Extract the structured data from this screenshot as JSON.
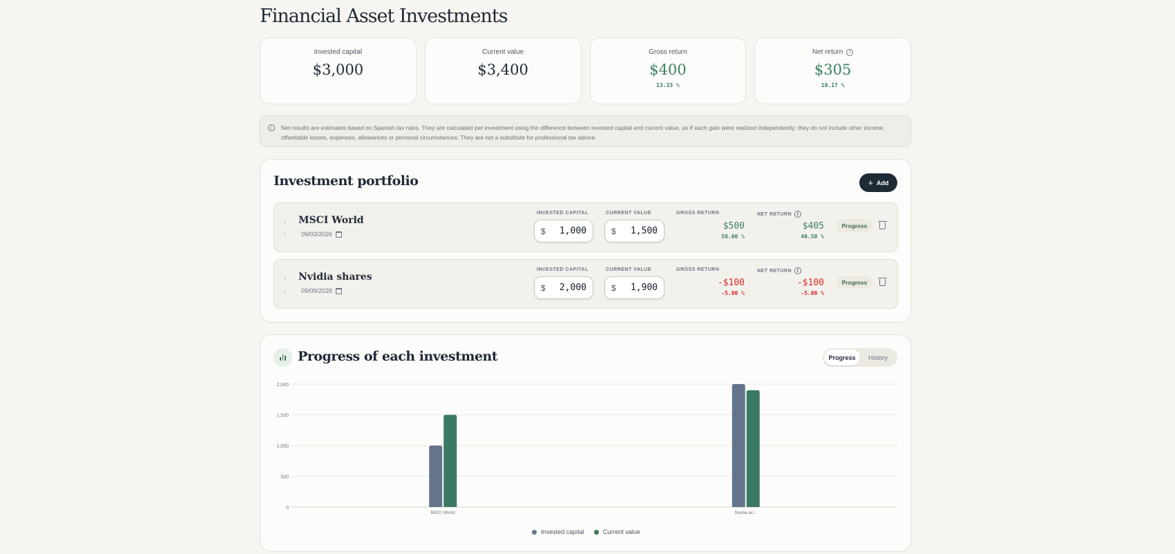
{
  "page": {
    "title": "Financial Asset Investments"
  },
  "summary": [
    {
      "label": "Invested capital",
      "value": "$3,000",
      "pct": "",
      "positive": false,
      "info": false
    },
    {
      "label": "Current value",
      "value": "$3,400",
      "pct": "",
      "positive": false,
      "info": false
    },
    {
      "label": "Gross return",
      "value": "$400",
      "pct": "13.33 %",
      "positive": true,
      "info": false
    },
    {
      "label": "Net return",
      "value": "$305",
      "pct": "10.17 %",
      "positive": true,
      "info": true
    }
  ],
  "notice": "Net results are estimates based on Spanish tax rules. They are calculated per investment using the difference between invested capital and current value, as if each gain were realized independently; they do not include other income, offsettable losses, expenses, allowances or personal circumstances. They are not a substitute for professional tax advice.",
  "portfolio": {
    "title": "Investment portfolio",
    "add_label": "Add",
    "labels": {
      "invested": "INVESTED CAPITAL",
      "current": "CURRENT VALUE",
      "gross": "GROSS RETURN",
      "net": "NET RETURN",
      "progress": "Progress",
      "currency": "$"
    },
    "rows": [
      {
        "name": "MSCI World",
        "date": "09/03/2026",
        "invested": "1,000",
        "current": "1,500",
        "gross": "$500",
        "gross_pct": "50.00 %",
        "net": "$405",
        "net_pct": "40.50 %",
        "positive": true
      },
      {
        "name": "Nvidia shares",
        "date": "09/09/2026",
        "invested": "2,000",
        "current": "1,900",
        "gross": "-$100",
        "gross_pct": "-5.00 %",
        "net": "-$100",
        "net_pct": "-5.00 %",
        "positive": false
      }
    ]
  },
  "progress": {
    "title": "Progress of each investment",
    "tabs": [
      "Progress",
      "History"
    ],
    "active_tab": "Progress"
  },
  "colors": {
    "invested": "#64748b",
    "current": "#3b7a62",
    "positive": "#3b8062",
    "negative": "#dc2626"
  },
  "chart_data": {
    "type": "bar",
    "categories": [
      "MSCI World",
      "Nvidia an..."
    ],
    "series": [
      {
        "name": "Invested capital",
        "values": [
          1000,
          2000
        ]
      },
      {
        "name": "Current value",
        "values": [
          1500,
          1900
        ]
      }
    ],
    "ylim": [
      0,
      2000
    ],
    "yticks": [
      0,
      500,
      1000,
      1500,
      2000
    ],
    "ytick_labels": [
      "0",
      "500",
      "1,000",
      "1,500",
      "2,000"
    ],
    "grid": true,
    "legend": "bottom-center"
  }
}
